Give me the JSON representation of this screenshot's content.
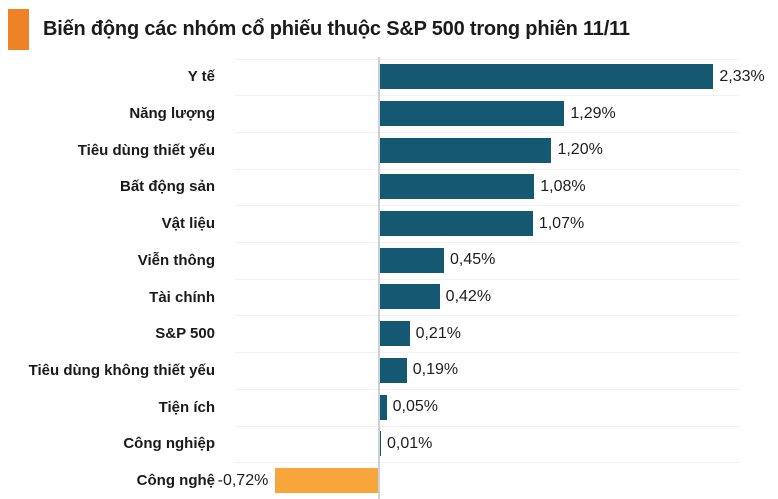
{
  "header": {
    "title": "Biến động các nhóm cổ phiếu thuộc S&P 500 trong phiên 11/11",
    "accent_color": "#EF8227"
  },
  "chart_data": {
    "type": "bar",
    "orientation": "horizontal",
    "title": "Biến động các nhóm cổ phiếu thuộc S&P 500 trong phiên 11/11",
    "categories": [
      "Y tế",
      "Năng lượng",
      "Tiêu dùng thiết yếu",
      "Bất động sản",
      "Vật liệu",
      "Viễn thông",
      "Tài chính",
      "S&P 500",
      "Tiêu dùng không thiết yếu",
      "Tiện ích",
      "Công nghiệp",
      "Công nghệ"
    ],
    "values": [
      2.33,
      1.29,
      1.2,
      1.08,
      1.07,
      0.45,
      0.42,
      0.21,
      0.19,
      0.05,
      0.01,
      -0.72
    ],
    "value_labels": [
      "2,33%",
      "1,29%",
      "1,20%",
      "1,08%",
      "1,07%",
      "0,45%",
      "0,42%",
      "0,21%",
      "0,19%",
      "0,05%",
      "0,01%",
      "-0,72%"
    ],
    "unit": "%",
    "positive_color": "#155872",
    "negative_color": "#F8A53C",
    "xlim": [
      -1.0,
      2.52
    ],
    "baseline": 0,
    "grid": "row-separators-only",
    "legend": "none",
    "value_label_position": "outside-end"
  }
}
